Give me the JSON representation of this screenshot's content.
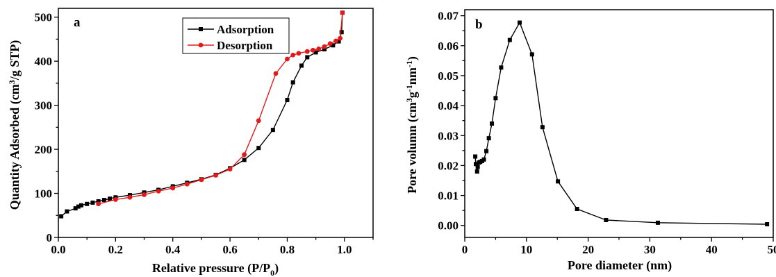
{
  "chart_data": [
    {
      "type": "line",
      "panel_label": "a",
      "xlabel": "Relative pressure (P/P0)",
      "ylabel": "Quantity Adsorbed (cm3/g STP)",
      "xlim": [
        0.0,
        1.1
      ],
      "ylim": [
        0,
        520
      ],
      "xticks": [
        0.0,
        0.2,
        0.4,
        0.6,
        0.8,
        1.0
      ],
      "xtick_labels": [
        "0.0",
        "0.2",
        "0.4",
        "0.6",
        "0.8",
        "1.0"
      ],
      "yticks": [
        0,
        100,
        200,
        300,
        400,
        500
      ],
      "ytick_labels": [
        "0",
        "100",
        "200",
        "300",
        "400",
        "500"
      ],
      "legend_position": "top-right",
      "series": [
        {
          "name": "Adsorption",
          "color": "#000000",
          "marker": "square",
          "x": [
            0.01,
            0.03,
            0.06,
            0.07,
            0.08,
            0.1,
            0.12,
            0.14,
            0.16,
            0.18,
            0.2,
            0.25,
            0.3,
            0.35,
            0.4,
            0.45,
            0.5,
            0.55,
            0.6,
            0.65,
            0.7,
            0.75,
            0.8,
            0.82,
            0.85,
            0.87,
            0.9,
            0.93,
            0.96,
            0.98,
            0.99,
            0.993
          ],
          "y": [
            48,
            59,
            66,
            70,
            73,
            76,
            79,
            82,
            85,
            88,
            91,
            96,
            102,
            108,
            116,
            124,
            132,
            142,
            157,
            176,
            203,
            244,
            312,
            352,
            390,
            409,
            420,
            427,
            436,
            445,
            466,
            510
          ]
        },
        {
          "name": "Desorption",
          "color": "#e31a1c",
          "marker": "circle",
          "x": [
            0.993,
            0.985,
            0.97,
            0.95,
            0.93,
            0.91,
            0.89,
            0.87,
            0.84,
            0.82,
            0.8,
            0.76,
            0.7,
            0.65,
            0.6,
            0.55,
            0.5,
            0.45,
            0.4,
            0.35,
            0.3,
            0.25,
            0.2,
            0.14
          ],
          "y": [
            510,
            452,
            446,
            440,
            433,
            428,
            425,
            422,
            418,
            414,
            405,
            372,
            265,
            188,
            155,
            141,
            131,
            121,
            112,
            105,
            97,
            91,
            86,
            76
          ]
        }
      ]
    },
    {
      "type": "line",
      "panel_label": "b",
      "xlabel": "Pore diameter (nm)",
      "ylabel": "Pore volumn (cm3g-1nm-1)",
      "xlim": [
        0,
        50
      ],
      "ylim": [
        -0.004,
        0.072
      ],
      "xticks": [
        0,
        10,
        20,
        30,
        40,
        50
      ],
      "xtick_labels": [
        "0",
        "10",
        "20",
        "30",
        "40",
        "50"
      ],
      "yticks": [
        0.0,
        0.01,
        0.02,
        0.03,
        0.04,
        0.05,
        0.06,
        0.07
      ],
      "ytick_labels": [
        "0.00",
        "0.01",
        "0.02",
        "0.03",
        "0.04",
        "0.05",
        "0.06",
        "0.07"
      ],
      "series": [
        {
          "color": "#000000",
          "marker": "square",
          "x": [
            1.7,
            1.8,
            2.0,
            2.1,
            2.3,
            2.5,
            2.8,
            3.1,
            3.5,
            3.9,
            4.4,
            5.0,
            5.9,
            7.3,
            8.9,
            10.9,
            12.6,
            15.1,
            18.2,
            22.9,
            31.3,
            49.0
          ],
          "y": [
            0.023,
            0.0205,
            0.018,
            0.0195,
            0.021,
            0.0212,
            0.0215,
            0.022,
            0.0248,
            0.0291,
            0.034,
            0.0425,
            0.0527,
            0.0619,
            0.0677,
            0.0571,
            0.0328,
            0.0147,
            0.0055,
            0.0018,
            0.0009,
            0.0004
          ]
        }
      ]
    }
  ],
  "legend": {
    "adsorption": "Adsorption",
    "desorption": "Desorption"
  },
  "labels": {
    "a_letter": "a",
    "b_letter": "b",
    "a_xlabel_main": "Relative pressure (P/P",
    "a_xlabel_sub": "0",
    "a_xlabel_end": ")",
    "a_ylabel_main": "Quantity Adsorbed (cm",
    "a_ylabel_sup": "3",
    "a_ylabel_end": "/g STP)",
    "b_xlabel": "Pore diameter (nm)",
    "b_ylabel_main": "Pore volumn (cm",
    "b_ylabel_sup1": "3",
    "b_ylabel_mid1": "g",
    "b_ylabel_sup2": "-1",
    "b_ylabel_mid2": "nm",
    "b_ylabel_sup3": "-1",
    "b_ylabel_end": ")"
  }
}
